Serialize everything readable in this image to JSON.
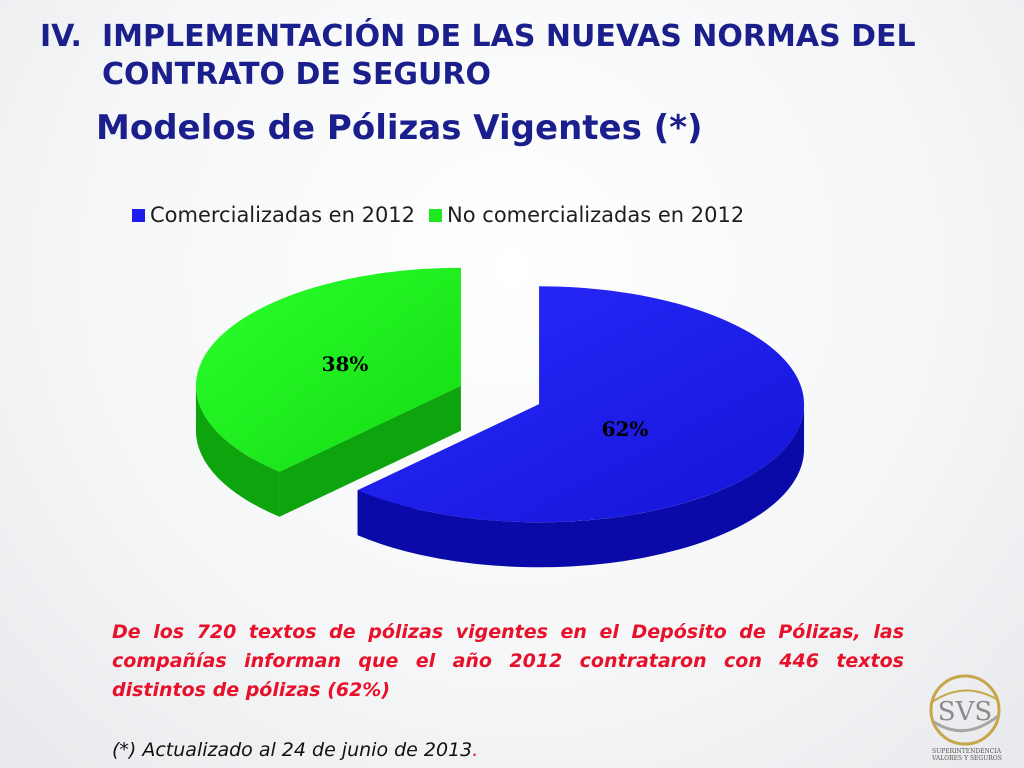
{
  "heading": {
    "number": "IV.",
    "text": "IMPLEMENTACIÓN DE LAS NUEVAS NORMAS DEL CONTRATO DE SEGURO"
  },
  "subtitle": "Modelos de Pólizas Vigentes (*)",
  "chart_data": {
    "type": "pie",
    "categories": [
      "Comercializadas en 2012",
      "No comercializadas en 2012"
    ],
    "values": [
      62,
      38
    ],
    "data_labels": [
      "62%",
      "38%"
    ],
    "colors": [
      "#1c1cf0",
      "#1de81d"
    ],
    "legend_position": "top"
  },
  "note": "De los 720 textos de pólizas vigentes en el Depósito de Pólizas, las compañías informan que el año 2012 contrataron con  446 textos distintos de pólizas (62%)",
  "footnote": {
    "text": "(*) Actualizado al 24 de junio de 2013",
    "end": "."
  },
  "logo": {
    "icon": "svs-logo-icon",
    "mark": "SVS",
    "caption_line1": "SUPERINTENDENCIA",
    "caption_line2": "VALORES Y SEGUROS"
  }
}
